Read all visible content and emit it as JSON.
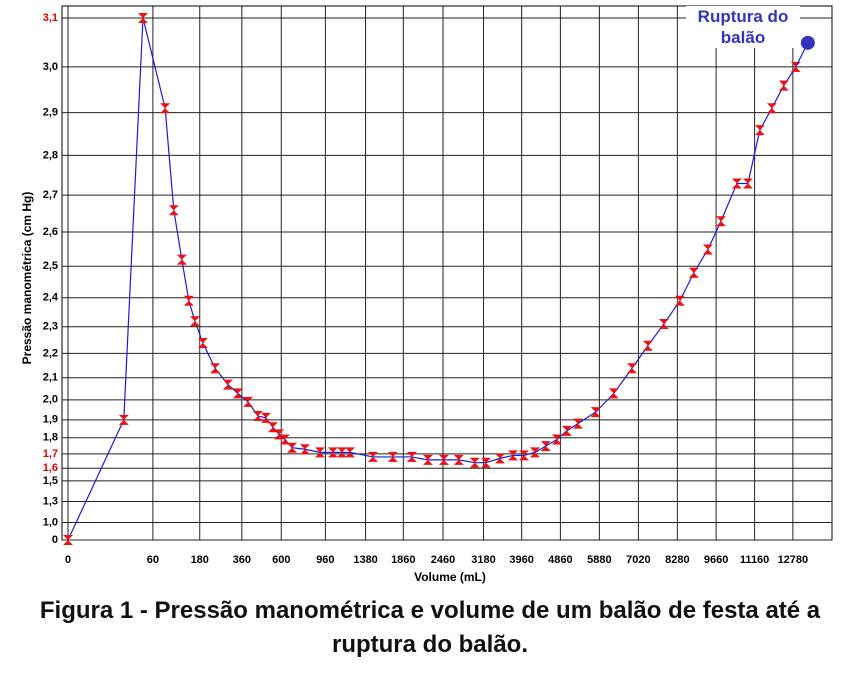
{
  "chart_data": {
    "type": "line",
    "y_label": "Pressão manométrica (cm Hg)",
    "x_label": "Volume (mL)",
    "caption": "Figura 1 - Pressão manométrica e volume de um balão de festa até a ruptura do balão.",
    "xscale": {
      "type": "power",
      "exponent": 0.4
    },
    "yscale": {
      "type": "power",
      "exponent": 3
    },
    "xlim": [
      0,
      14480
    ],
    "ylim": [
      0,
      3.1
    ],
    "xticks": [
      0,
      60,
      180,
      360,
      600,
      960,
      1380,
      1860,
      2460,
      3180,
      3960,
      4860,
      5880,
      7020,
      8280,
      9660,
      11160,
      12780
    ],
    "yticks": [
      0,
      {
        "value": 1.0,
        "label": "1,0"
      },
      {
        "value": 1.3,
        "label": "1,3"
      },
      {
        "value": 1.5,
        "label": "1,5"
      },
      {
        "value": 1.6,
        "label": "1,6",
        "color": "#e00000"
      },
      {
        "value": 1.7,
        "label": "1,7",
        "color": "#e00000"
      },
      {
        "value": 1.8,
        "label": "1,8"
      },
      {
        "value": 1.9,
        "label": "1,9"
      },
      {
        "value": 2.0,
        "label": "2,0"
      },
      {
        "value": 2.1,
        "label": "2,1"
      },
      {
        "value": 2.2,
        "label": "2,2"
      },
      {
        "value": 2.3,
        "label": "2,3"
      },
      {
        "value": 2.4,
        "label": "2,4"
      },
      {
        "value": 2.5,
        "label": "2,5"
      },
      {
        "value": 2.6,
        "label": "2,6"
      },
      {
        "value": 2.7,
        "label": "2,7"
      },
      {
        "value": 2.8,
        "label": "2,8"
      },
      {
        "value": 2.9,
        "label": "2,9"
      },
      {
        "value": 3.0,
        "label": "3,0"
      },
      {
        "value": 3.1,
        "label": "3,1",
        "color": "#e00000"
      }
    ],
    "grid": true,
    "line_color": "#1a1adb",
    "marker_color": "#ee1111",
    "x": [
      0,
      21,
      44,
      84,
      104,
      125,
      145,
      164,
      191,
      237,
      292,
      340,
      393,
      449,
      498,
      543,
      584,
      626,
      679,
      781,
      910,
      1032,
      1122,
      1206,
      1467,
      1718,
      1981,
      2220,
      2475,
      2727,
      3015,
      3226,
      3504,
      3774,
      4010,
      4256,
      4508,
      4775,
      5022,
      5304,
      5780,
      6288,
      6825,
      7315,
      7830,
      8366,
      8853,
      9357,
      9841,
      10454,
      10889,
      11374,
      11873,
      12384,
      12908
    ],
    "values": [
      0,
      1.9,
      3.1,
      2.91,
      2.66,
      2.52,
      2.39,
      2.32,
      2.24,
      2.14,
      2.07,
      2.03,
      1.99,
      1.92,
      1.91,
      1.86,
      1.82,
      1.79,
      1.74,
      1.73,
      1.71,
      1.71,
      1.71,
      1.71,
      1.68,
      1.68,
      1.68,
      1.66,
      1.66,
      1.66,
      1.64,
      1.64,
      1.67,
      1.69,
      1.69,
      1.71,
      1.75,
      1.79,
      1.84,
      1.88,
      1.94,
      2.03,
      2.14,
      2.23,
      2.31,
      2.39,
      2.48,
      2.55,
      2.63,
      2.73,
      2.73,
      2.86,
      2.91,
      2.96,
      3.0
    ],
    "annotation": {
      "text": "Ruptura do balão",
      "x": 13451,
      "y": 3.05,
      "color": "#3333bb"
    }
  }
}
